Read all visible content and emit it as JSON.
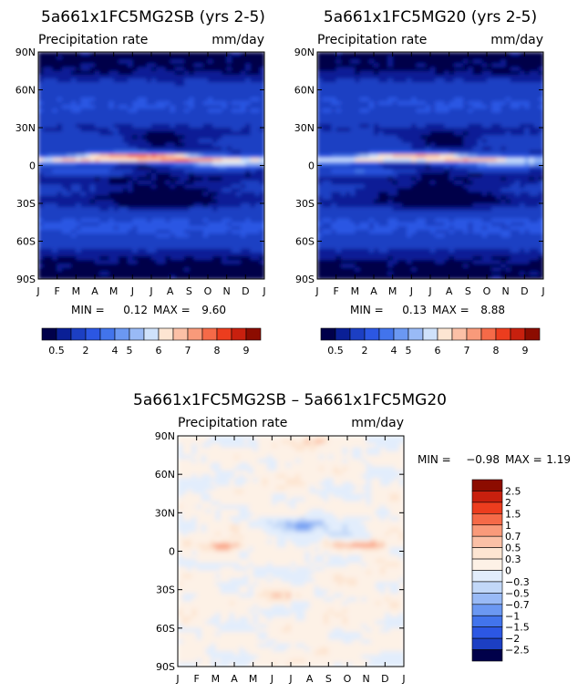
{
  "chart_data": [
    {
      "type": "heatmap",
      "title": "5a661x1FC5MG2SB (yrs 2-5)",
      "subtitle": "Precipitation rate",
      "units": "mm/day",
      "x_ticks": [
        "J",
        "F",
        "M",
        "A",
        "M",
        "J",
        "J",
        "A",
        "S",
        "O",
        "N",
        "D",
        "J"
      ],
      "y_ticks": [
        "90N",
        "60N",
        "30N",
        "0",
        "30S",
        "60S",
        "90S"
      ],
      "min_label": "MIN =",
      "min_value": "0.12",
      "max_label": "MAX =",
      "max_value": "9.60",
      "itcz_lat": 5,
      "itcz_peak": 9.6
    },
    {
      "type": "heatmap",
      "title": "5a661x1FC5MG20 (yrs 2-5)",
      "subtitle": "Precipitation rate",
      "units": "mm/day",
      "x_ticks": [
        "J",
        "F",
        "M",
        "A",
        "M",
        "J",
        "J",
        "A",
        "S",
        "O",
        "N",
        "D",
        "J"
      ],
      "y_ticks": [
        "90N",
        "60N",
        "30N",
        "0",
        "30S",
        "60S",
        "90S"
      ],
      "min_label": "MIN =",
      "min_value": "0.13",
      "max_label": "MAX =",
      "max_value": "8.88",
      "itcz_lat": 5,
      "itcz_peak": 8.9
    },
    {
      "type": "heatmap",
      "title": "5a661x1FC5MG2SB – 5a661x1FC5MG20",
      "subtitle": "Precipitation rate",
      "units": "mm/day",
      "x_ticks": [
        "J",
        "F",
        "M",
        "A",
        "M",
        "J",
        "J",
        "A",
        "S",
        "O",
        "N",
        "D",
        "J"
      ],
      "y_ticks": [
        "90N",
        "60N",
        "30N",
        "0",
        "30S",
        "60S",
        "90S"
      ],
      "min_label": "MIN =",
      "min_value": "−0.98",
      "max_label": "MAX =",
      "max_value": "1.19"
    }
  ],
  "colorbar_abs": {
    "labels": [
      "0.5",
      "2",
      "4",
      "5",
      "6",
      "7",
      "8",
      "9"
    ],
    "colors": [
      "#00004a",
      "#0a1f96",
      "#1c3fc3",
      "#2c57e3",
      "#4274ec",
      "#6b98f2",
      "#99baf6",
      "#cfe2fb",
      "#fde5d2",
      "#fbc0a6",
      "#f99a7a",
      "#f56a48",
      "#ec3d1e",
      "#c8200e",
      "#8c0c00"
    ]
  },
  "colorbar_diff": {
    "labels": [
      "2.5",
      "2",
      "1.5",
      "1",
      "0.7",
      "0.5",
      "0.3",
      "0",
      "−0.3",
      "−0.5",
      "−0.7",
      "−1",
      "−1.5",
      "−2",
      "−2.5"
    ],
    "colors": [
      "#8c0c00",
      "#c8200e",
      "#ec3d1e",
      "#f56a48",
      "#f99a7a",
      "#fbc0a6",
      "#fde5d2",
      "#fdf1e6",
      "#e2edfc",
      "#c2d8f8",
      "#99baf6",
      "#6b98f2",
      "#4274ec",
      "#2c57e3",
      "#1c3fc3",
      "#00004a"
    ]
  }
}
